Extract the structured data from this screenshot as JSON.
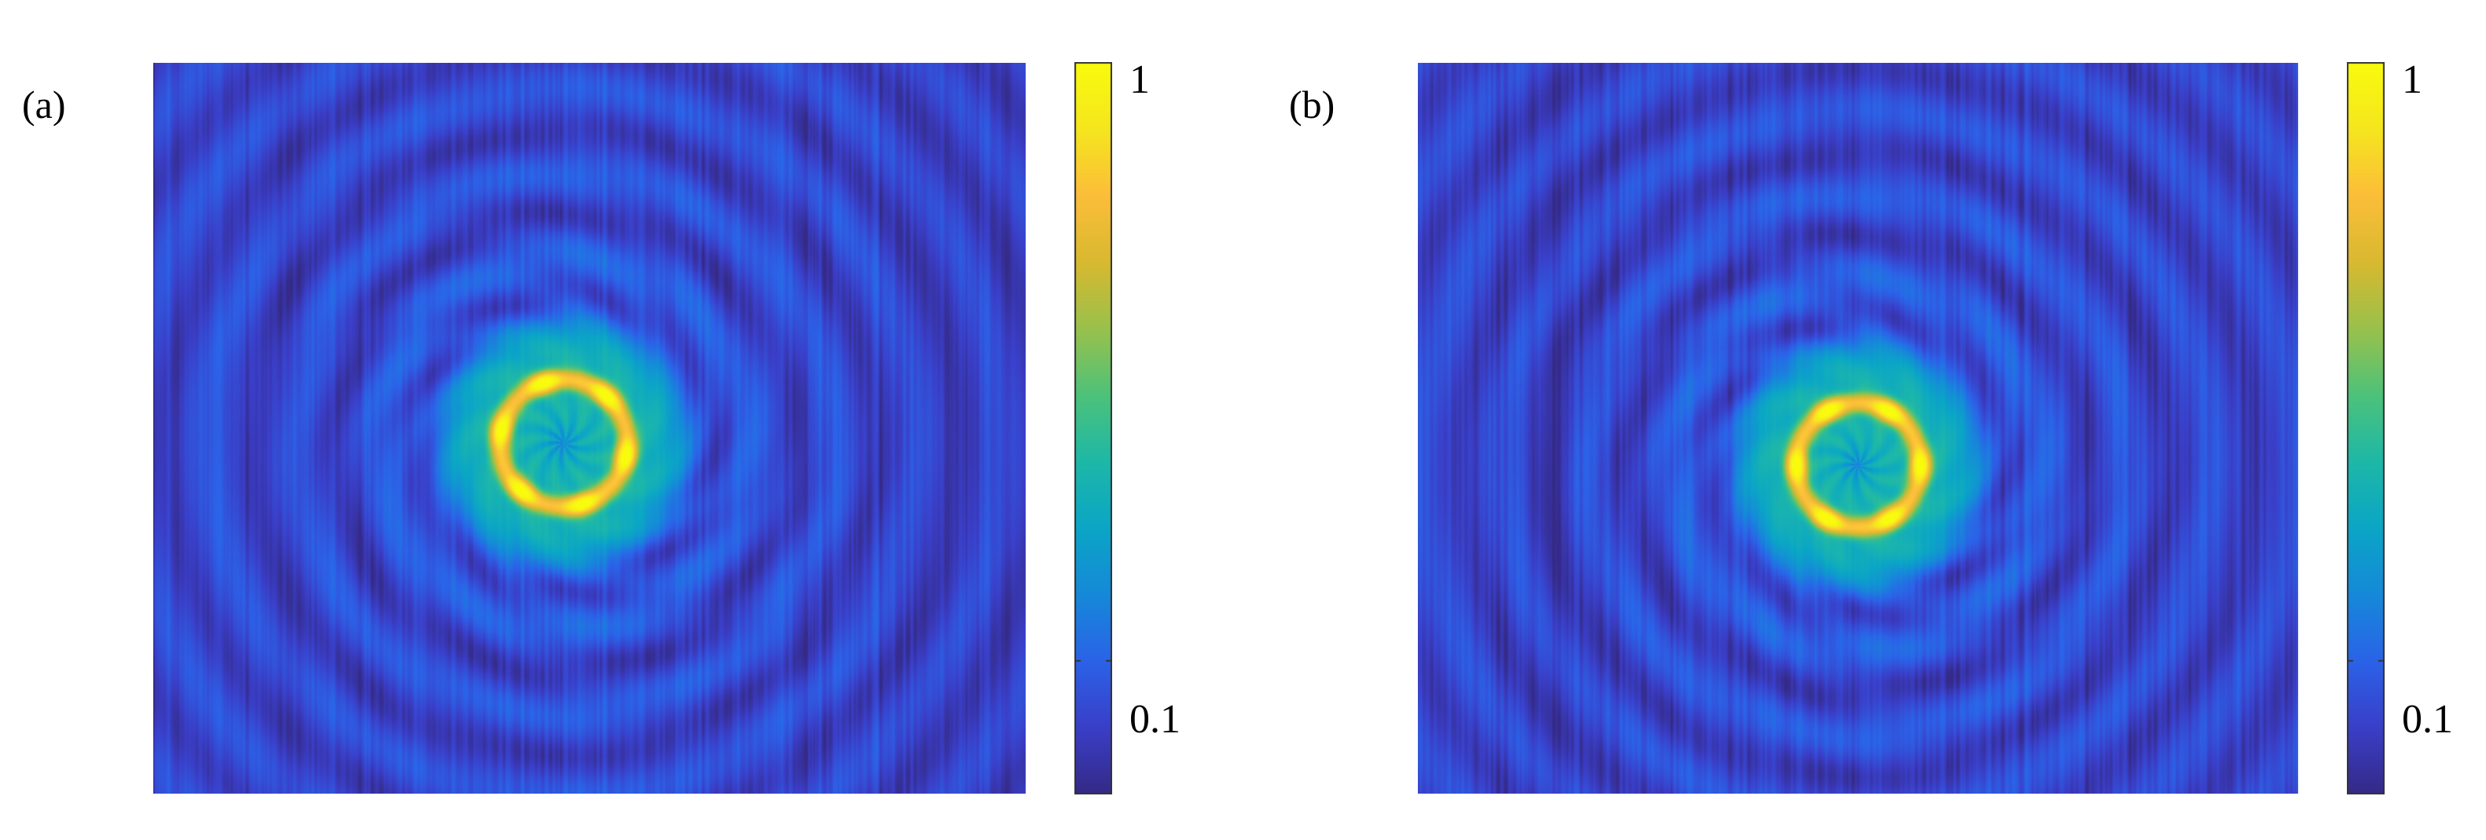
{
  "figure": {
    "panels": [
      {
        "label": "(a)"
      },
      {
        "label": "(b)"
      }
    ]
  },
  "chart_data": [
    {
      "type": "heatmap",
      "panel": "(a)",
      "title": "",
      "xlabel": "",
      "ylabel": "",
      "colorbar": {
        "scale": "log",
        "range": [
          0.06,
          1
        ],
        "ticks": [
          0.1,
          1
        ],
        "tick_labels": [
          "0.1",
          "1"
        ],
        "colormap": "parula"
      },
      "pattern": {
        "ring_lobes": 6,
        "ring_center": [
          0.47,
          0.52
        ],
        "ring_radius": 0.087,
        "lobe_peak": 0.95,
        "background": 0.08,
        "ring_rotation_deg": 12
      },
      "grid": false,
      "legend": "none"
    },
    {
      "type": "heatmap",
      "panel": "(b)",
      "title": "",
      "xlabel": "",
      "ylabel": "",
      "colorbar": {
        "scale": "log",
        "range": [
          0.06,
          1
        ],
        "ticks": [
          0.1,
          1
        ],
        "tick_labels": [
          "0.1",
          "1"
        ],
        "colormap": "parula"
      },
      "pattern": {
        "ring_lobes": 6,
        "ring_center": [
          0.5,
          0.55
        ],
        "ring_radius": 0.085,
        "lobe_peak": 0.95,
        "background": 0.08,
        "ring_rotation_deg": 0
      },
      "grid": false,
      "legend": "none"
    }
  ],
  "colors": {
    "parula": [
      "#352a87",
      "#3a3fc8",
      "#2b63e8",
      "#1689d9",
      "#0ba6c6",
      "#1eb8a8",
      "#4ec27a",
      "#9ac14c",
      "#d9b930",
      "#fcbe3a",
      "#f5e61e",
      "#f9fb0e"
    ]
  }
}
